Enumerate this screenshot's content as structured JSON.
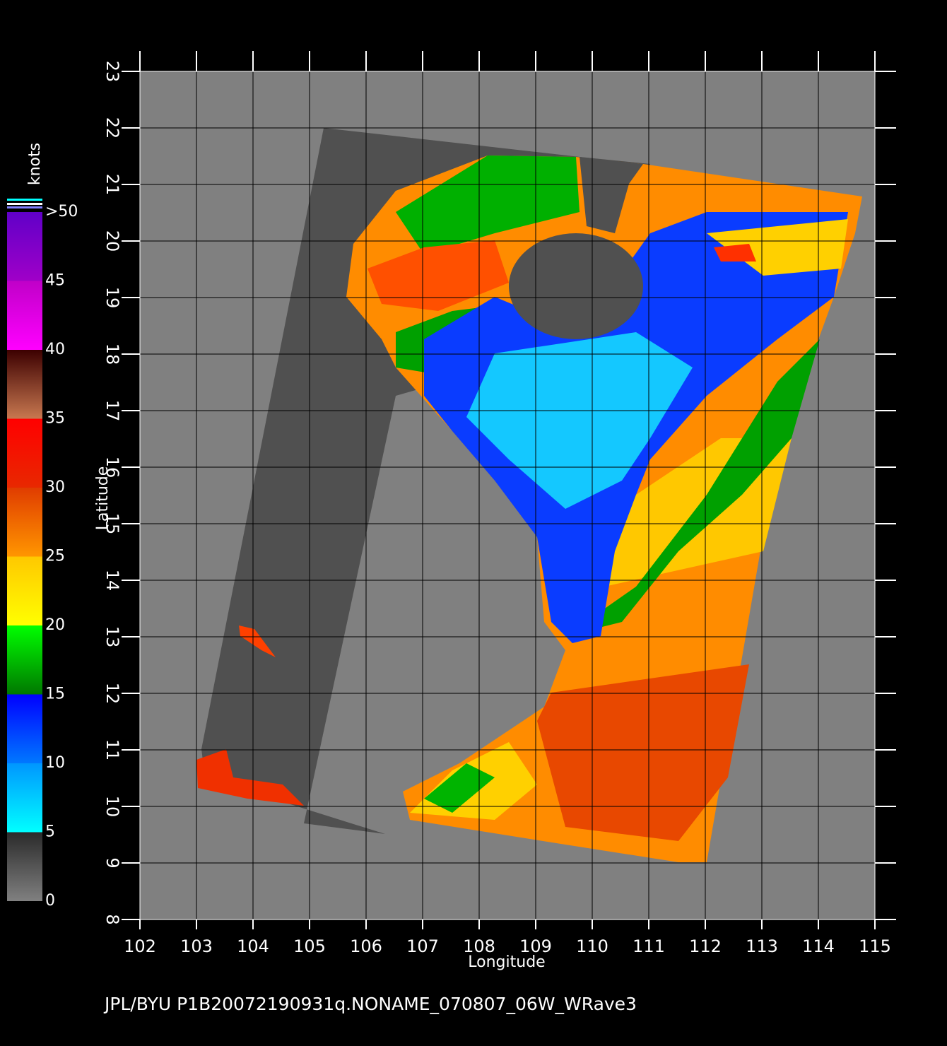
{
  "map": {
    "xlabel": "Longitude",
    "ylabel": "Latitude",
    "xlim": [
      102,
      115
    ],
    "ylim": [
      8,
      23
    ],
    "xticks": [
      102,
      103,
      104,
      105,
      106,
      107,
      108,
      109,
      110,
      111,
      112,
      113,
      114,
      115
    ],
    "yticks": [
      8,
      9,
      10,
      11,
      12,
      13,
      14,
      15,
      16,
      17,
      18,
      19,
      20,
      21,
      22,
      23
    ],
    "grid": true
  },
  "colorbar": {
    "title": "knots",
    "lim": [
      0,
      50
    ],
    "ticks": [
      0,
      5,
      10,
      15,
      20,
      25,
      30,
      35,
      40,
      45,
      {
        "value": 50,
        "label": ">50"
      }
    ],
    "colors": [
      [
        "#808080",
        "#2a2a2a"
      ],
      [
        "#00ffff",
        "#0096ff"
      ],
      [
        "#0078ff",
        "#0000ff"
      ],
      [
        "#007800",
        "#00ff00"
      ],
      [
        "#ffff00",
        "#ffc800"
      ],
      [
        "#ff9600",
        "#e03c00"
      ],
      [
        "#e82800",
        "#ff0000"
      ],
      [
        "#c87850",
        "#3c0000"
      ],
      [
        "#ff00ff",
        "#c000c8"
      ],
      [
        "#a000c8",
        "#6000c8"
      ]
    ]
  },
  "footer": "JPL/BYU  P1B20072190931q.NONAME_070807_06W_WRave3"
}
